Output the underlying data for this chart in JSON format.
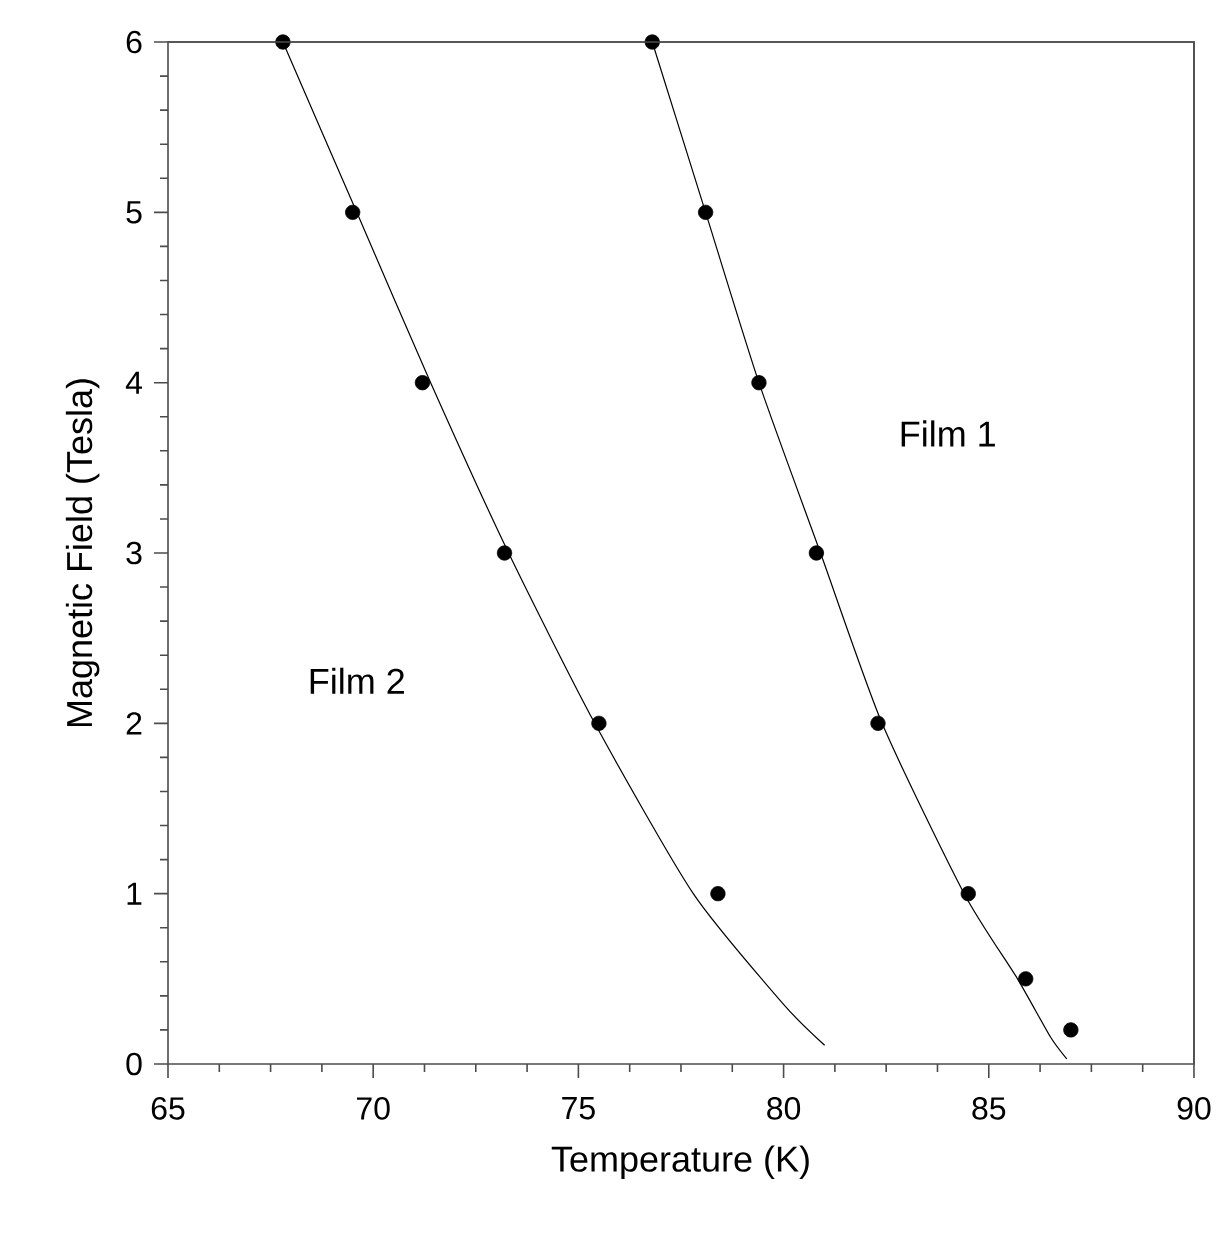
{
  "chart_data": {
    "type": "scatter",
    "xlabel": "Temperature (K)",
    "ylabel": "Magnetic Field (Tesla)",
    "xlim": [
      65,
      90
    ],
    "ylim": [
      0,
      6
    ],
    "xticks": [
      65,
      70,
      75,
      80,
      85,
      90
    ],
    "yticks": [
      0,
      1,
      2,
      3,
      4,
      5,
      6
    ],
    "grid": false,
    "legend": false,
    "marker": "circle",
    "series": [
      {
        "type": "line",
        "color": "#000000",
        "marker": "none",
        "x": [
          67.8,
          69.6,
          71.4,
          73.3,
          75.4,
          77.8,
          80.0,
          81.0
        ],
        "values": [
          6,
          5,
          4,
          3,
          2,
          1,
          0.35,
          0.11
        ]
      },
      {
        "type": "line",
        "color": "#000000",
        "marker": "none",
        "x": [
          76.8,
          78.1,
          79.4,
          80.9,
          82.4,
          84.4,
          85.7,
          86.5,
          86.9
        ],
        "values": [
          6,
          5,
          4,
          3,
          2,
          1,
          0.5,
          0.16,
          0.03
        ]
      },
      {
        "color": "#000000",
        "x": [
          67.8,
          69.5,
          71.2,
          73.2,
          75.5,
          78.4
        ],
        "values": [
          6,
          5,
          4,
          3,
          2,
          1
        ]
      },
      {
        "color": "#000000",
        "x": [
          76.8,
          78.1,
          79.4,
          80.8,
          82.3,
          84.5,
          85.9,
          87.0
        ],
        "values": [
          6,
          5,
          4,
          3,
          2,
          1,
          0.5,
          0.2
        ]
      }
    ],
    "annotations": [
      "Film 1",
      "Film 2"
    ]
  }
}
